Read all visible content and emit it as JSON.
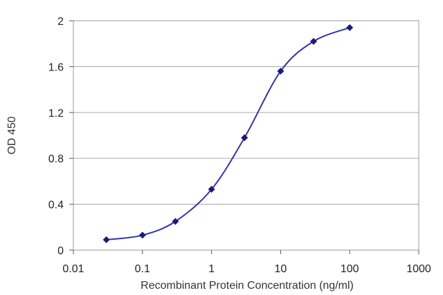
{
  "chart_data": {
    "type": "line",
    "title": "",
    "xlabel": "Recombinant Protein Concentration (ng/ml)",
    "ylabel": "OD 450",
    "x_scale": "log",
    "xlim": [
      0.01,
      1000
    ],
    "ylim": [
      0,
      2
    ],
    "x_ticks": [
      "0.01",
      "0.1",
      "1",
      "10",
      "100",
      "1000"
    ],
    "y_ticks": [
      "0",
      "0.4",
      "0.8",
      "1.2",
      "1.6",
      "2"
    ],
    "grid": "horizontal",
    "legend": "none",
    "series": [
      {
        "x": [
          0.03,
          0.1,
          0.3,
          1,
          3,
          10,
          30,
          100
        ],
        "y": [
          0.09,
          0.13,
          0.25,
          0.53,
          0.98,
          1.56,
          1.82,
          1.94
        ]
      }
    ],
    "colors": {
      "line": "#3333aa",
      "marker": "#1a1a80",
      "grid": "#b3b3b3",
      "plot_border": "#9a9a9a"
    }
  }
}
